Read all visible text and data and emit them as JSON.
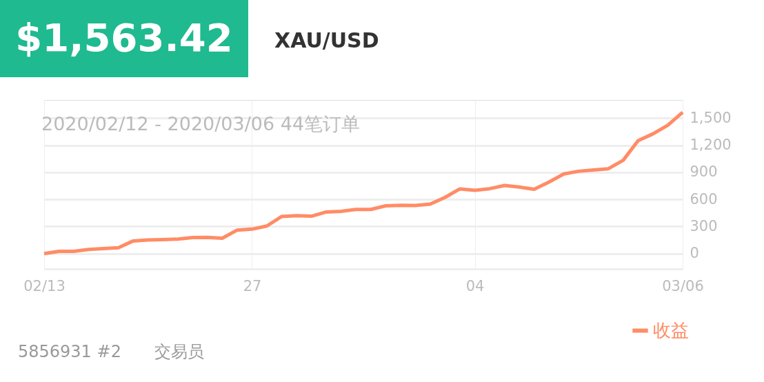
{
  "chart_data": {
    "type": "line",
    "title": "$1,563.42",
    "subtitle": "XAU/USD",
    "categories": [
      "02/13",
      null,
      null,
      null,
      null,
      null,
      null,
      null,
      null,
      null,
      null,
      null,
      null,
      null,
      "27",
      null,
      null,
      null,
      null,
      null,
      null,
      null,
      null,
      null,
      null,
      null,
      null,
      null,
      null,
      "04",
      null,
      null,
      null,
      null,
      null,
      null,
      null,
      null,
      null,
      null,
      null,
      null,
      null,
      "03/06"
    ],
    "series": [
      {
        "name": "收益",
        "color": "#ff8c66",
        "values": [
          0,
          25,
          25,
          45,
          55,
          65,
          140,
          150,
          155,
          160,
          177,
          180,
          170,
          260,
          270,
          305,
          411,
          420,
          413,
          460,
          468,
          488,
          488,
          528,
          535,
          533,
          548,
          622,
          716,
          700,
          718,
          754,
          736,
          711,
          792,
          881,
          911,
          926,
          939,
          1033,
          1249,
          1325,
          1421,
          1563
        ]
      }
    ],
    "ylim": [
      -170,
      1700
    ],
    "yticks": [
      0,
      300,
      600,
      900,
      {
        "value": 1200,
        "label": "1,200"
      },
      {
        "value": 1500,
        "label": "1,500"
      }
    ],
    "grid": true,
    "legend": "bottom right",
    "marker": "none",
    "line_style": "solid",
    "annotations": [
      "2020/02/12 - 2020/03/06  44笔订单",
      "5856931 #2",
      "交易员"
    ]
  }
}
